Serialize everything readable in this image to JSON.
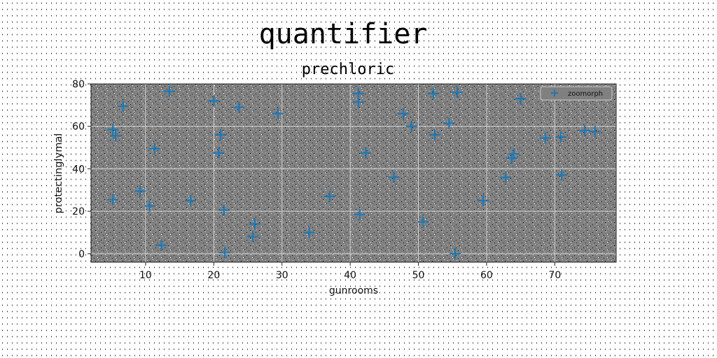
{
  "colors": {
    "plot_background": "#808080",
    "marker": "#1f77b4",
    "grid": "#d8d8d8",
    "legend_border": "#cccccc"
  },
  "chart_data": {
    "type": "scatter",
    "suptitle": "quantifier",
    "title": "prechloric",
    "xlabel": "gunrooms",
    "ylabel": "protectinglymal",
    "xlim": [
      2,
      79
    ],
    "ylim": [
      -4,
      80
    ],
    "xticks": [
      10,
      20,
      30,
      40,
      50,
      60,
      70
    ],
    "yticks": [
      0,
      20,
      40,
      60,
      80
    ],
    "grid": true,
    "marker": "+",
    "legend_position": "top-right",
    "series": [
      {
        "name": "zoomorph",
        "points": [
          [
            5.2,
            58.5
          ],
          [
            5.6,
            55.5
          ],
          [
            6.7,
            69.5
          ],
          [
            11.3,
            49.5
          ],
          [
            13.5,
            76.5
          ],
          [
            20.0,
            72.0
          ],
          [
            21.0,
            56.0
          ],
          [
            20.7,
            47.5
          ],
          [
            23.7,
            69.0
          ],
          [
            29.4,
            66.0
          ],
          [
            41.2,
            75.5
          ],
          [
            41.2,
            71.5
          ],
          [
            42.3,
            47.5
          ],
          [
            47.8,
            66.0
          ],
          [
            49.0,
            60.0
          ],
          [
            52.2,
            75.5
          ],
          [
            52.4,
            56.0
          ],
          [
            54.5,
            61.5
          ],
          [
            55.7,
            76.0
          ],
          [
            65.0,
            73.0
          ],
          [
            68.6,
            54.5
          ],
          [
            70.9,
            55.0
          ],
          [
            74.4,
            58.0
          ],
          [
            75.9,
            57.5
          ],
          [
            64.0,
            47.0
          ],
          [
            63.7,
            45.0
          ],
          [
            46.4,
            36.0
          ],
          [
            62.8,
            36.0
          ],
          [
            71.0,
            37.0
          ],
          [
            5.2,
            25.5
          ],
          [
            9.2,
            29.5
          ],
          [
            10.6,
            22.5
          ],
          [
            16.6,
            25.0
          ],
          [
            21.5,
            20.5
          ],
          [
            37.0,
            27.0
          ],
          [
            41.4,
            18.5
          ],
          [
            59.5,
            25.0
          ],
          [
            50.7,
            15.0
          ],
          [
            26.0,
            14.0
          ],
          [
            25.7,
            8.0
          ],
          [
            34.0,
            10.0
          ],
          [
            12.3,
            4.0
          ],
          [
            21.6,
            0.5
          ],
          [
            55.4,
            0.0
          ]
        ]
      }
    ]
  }
}
